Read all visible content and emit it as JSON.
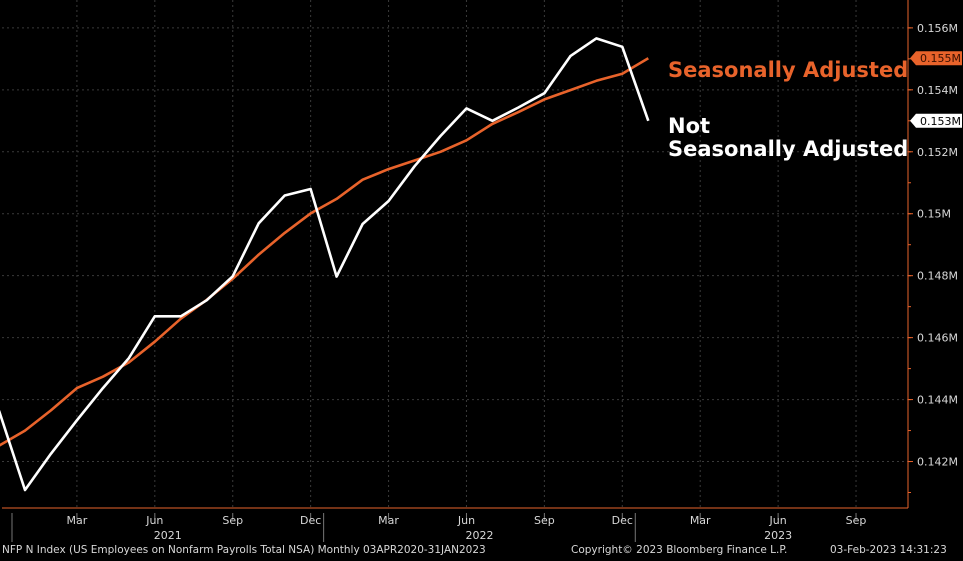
{
  "chart_data": {
    "type": "line",
    "title": "",
    "xlabel": "",
    "ylabel": "",
    "x": [
      "2020-12",
      "2021-01",
      "2021-02",
      "2021-03",
      "2021-04",
      "2021-05",
      "2021-06",
      "2021-07",
      "2021-08",
      "2021-09",
      "2021-10",
      "2021-11",
      "2021-12",
      "2022-01",
      "2022-02",
      "2022-03",
      "2022-04",
      "2022-05",
      "2022-06",
      "2022-07",
      "2022-08",
      "2022-09",
      "2022-10",
      "2022-11",
      "2022-12",
      "2023-01"
    ],
    "xlim": [
      "2020-12",
      "2023-10"
    ],
    "ylim": [
      0.1405,
      0.1569
    ],
    "y_ticks": [
      {
        "value": 0.142,
        "label": "0.142M"
      },
      {
        "value": 0.144,
        "label": "0.144M"
      },
      {
        "value": 0.146,
        "label": "0.146M"
      },
      {
        "value": 0.148,
        "label": "0.148M"
      },
      {
        "value": 0.15,
        "label": "0.15M"
      },
      {
        "value": 0.152,
        "label": "0.152M"
      },
      {
        "value": 0.154,
        "label": "0.154M"
      },
      {
        "value": 0.156,
        "label": "0.156M"
      }
    ],
    "x_ticks": [
      {
        "x": "2021-03",
        "label": "Mar"
      },
      {
        "x": "2021-06",
        "label": "Jun"
      },
      {
        "x": "2021-09",
        "label": "Sep"
      },
      {
        "x": "2021-12",
        "label": "Dec"
      },
      {
        "x": "2022-03",
        "label": "Mar"
      },
      {
        "x": "2022-06",
        "label": "Jun"
      },
      {
        "x": "2022-09",
        "label": "Sep"
      },
      {
        "x": "2022-12",
        "label": "Dec"
      },
      {
        "x": "2023-03",
        "label": "Mar"
      },
      {
        "x": "2023-06",
        "label": "Jun"
      },
      {
        "x": "2023-09",
        "label": "Sep"
      }
    ],
    "year_labels": [
      {
        "label": "2021",
        "from": "2021-01",
        "to": "2021-12"
      },
      {
        "label": "2022",
        "from": "2022-01",
        "to": "2022-12"
      },
      {
        "label": "2023",
        "from": "2023-01",
        "to": "2023-12"
      }
    ],
    "grid": true,
    "series": [
      {
        "name": "Seasonally Adjusted",
        "color": "#e8632b",
        "last_value_label": "0.155M",
        "values": [
          0.14251,
          0.143,
          0.14365,
          0.14437,
          0.14474,
          0.1452,
          0.14587,
          0.14661,
          0.14722,
          0.1479,
          0.14868,
          0.14938,
          0.15001,
          0.15048,
          0.1511,
          0.15144,
          0.15172,
          0.152,
          0.15237,
          0.1529,
          0.15328,
          0.15369,
          0.15399,
          0.15429,
          0.15452,
          0.15502
        ]
      },
      {
        "name": "Not\nSeasonally Adjusted",
        "color": "#ffffff",
        "last_value_label": "0.153M",
        "values": [
          0.14364,
          0.14108,
          0.14225,
          0.14333,
          0.14437,
          0.14534,
          0.14669,
          0.14669,
          0.14721,
          0.14798,
          0.14969,
          0.15059,
          0.1508,
          0.14797,
          0.14967,
          0.15041,
          0.15153,
          0.15251,
          0.1534,
          0.153,
          0.15343,
          0.15389,
          0.15509,
          0.15566,
          0.15539,
          0.153
        ]
      }
    ]
  },
  "footer": {
    "left": "NFP N Index (US Employees on Nonfarm Payrolls Total NSA)  Monthly 03APR2020-31JAN2023",
    "copyright": "Copyright© 2023 Bloomberg Finance L.P.",
    "timestamp": "03-Feb-2023 14:31:23"
  },
  "colors": {
    "background": "#000000",
    "grid": "#3a3a3a",
    "axis": "#e8632b",
    "text": "#d8d8d8"
  }
}
